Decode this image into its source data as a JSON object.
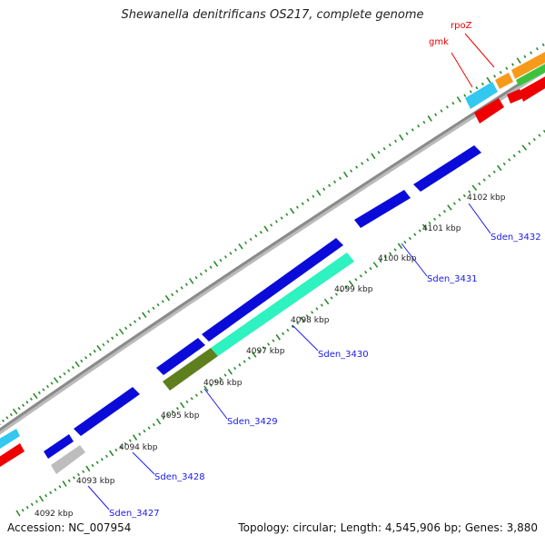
{
  "title": "Shewanella denitrificans OS217, complete genome",
  "footer": {
    "accession": "Accession: NC_007954",
    "summary": "Topology: circular; Length: 4,545,906 bp; Genes: 3,880"
  },
  "ticks": [
    "4092 kbp",
    "4093 kbp",
    "4094 kbp",
    "4095 kbp",
    "4096 kbp",
    "4097 kbp",
    "4098 kbp",
    "4099 kbp",
    "4100 kbp",
    "4101 kbp",
    "4102 kbp"
  ],
  "genes": [
    {
      "label": "Sden_3427",
      "color": "#0000ee"
    },
    {
      "label": "Sden_3428",
      "color": "#0000ee"
    },
    {
      "label": "Sden_3429",
      "color": "#0000ee"
    },
    {
      "label": "Sden_3430",
      "color": "#0000ee"
    },
    {
      "label": "Sden_3431",
      "color": "#0000ee"
    },
    {
      "label": "Sden_3432",
      "color": "#0000ee"
    },
    {
      "label": "gmk",
      "color": "#ee0000"
    },
    {
      "label": "rpoZ",
      "color": "#ee0000"
    }
  ],
  "colors": {
    "cds": "#0b0bd9",
    "aqua": "#2ef2c0",
    "olive": "#5e7f1e",
    "grey": "#bdbdbd",
    "red": "#ee0000",
    "sky": "#33c8f0",
    "orange": "#f79a1a",
    "green": "#3cc23c",
    "backbone": "#8a8a8a",
    "tick": "#2a8a2a"
  }
}
